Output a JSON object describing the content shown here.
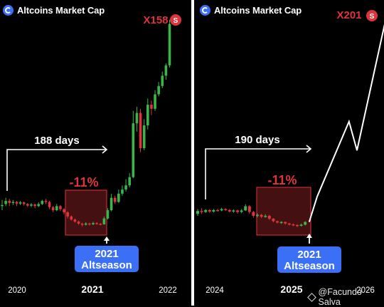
{
  "footer": {
    "credit": "@Facundo Salva",
    "icon": "binance-square-icon"
  },
  "chart_data": [
    {
      "type": "candlestick",
      "title": "Altcoins Market Cap",
      "x_ticks": [
        "2020",
        "2021",
        "2022"
      ],
      "multiplier_label": "X158",
      "duration_label": "188 days",
      "drawdown_label": "-11%",
      "annotation": [
        "2021",
        "Altseason"
      ],
      "colors": {
        "up": "#3bb54a",
        "down": "#e0343c",
        "accent": "#e0343c",
        "badge": "#3b6ff5"
      },
      "candles": [
        {
          "o": 1.6,
          "c": 1.65,
          "h": 1.9,
          "l": 1.4
        },
        {
          "o": 1.7,
          "c": 1.85,
          "h": 2.0,
          "l": 1.6
        },
        {
          "o": 1.85,
          "c": 1.75,
          "h": 1.95,
          "l": 1.6
        },
        {
          "o": 1.75,
          "c": 1.8,
          "h": 1.9,
          "l": 1.65
        },
        {
          "o": 1.8,
          "c": 1.72,
          "h": 1.85,
          "l": 1.6
        },
        {
          "o": 1.72,
          "c": 1.78,
          "h": 1.85,
          "l": 1.65
        },
        {
          "o": 1.78,
          "c": 1.7,
          "h": 1.82,
          "l": 1.62
        },
        {
          "o": 1.7,
          "c": 1.62,
          "h": 1.75,
          "l": 1.55
        },
        {
          "o": 1.62,
          "c": 1.68,
          "h": 1.75,
          "l": 1.55
        },
        {
          "o": 1.68,
          "c": 1.6,
          "h": 1.72,
          "l": 1.5
        },
        {
          "o": 1.6,
          "c": 1.7,
          "h": 1.78,
          "l": 1.55
        },
        {
          "o": 1.7,
          "c": 1.85,
          "h": 1.9,
          "l": 1.65
        },
        {
          "o": 1.85,
          "c": 1.8,
          "h": 1.95,
          "l": 1.7
        },
        {
          "o": 1.8,
          "c": 1.55,
          "h": 1.85,
          "l": 1.45
        },
        {
          "o": 1.55,
          "c": 1.4,
          "h": 1.6,
          "l": 1.3
        },
        {
          "o": 1.4,
          "c": 1.6,
          "h": 1.7,
          "l": 1.35
        },
        {
          "o": 1.6,
          "c": 1.45,
          "h": 1.65,
          "l": 1.35
        },
        {
          "o": 1.45,
          "c": 1.3,
          "h": 1.5,
          "l": 1.2
        },
        {
          "o": 1.3,
          "c": 1.1,
          "h": 1.35,
          "l": 1.0
        },
        {
          "o": 1.1,
          "c": 0.95,
          "h": 1.15,
          "l": 0.9
        },
        {
          "o": 0.95,
          "c": 0.85,
          "h": 1.0,
          "l": 0.8
        },
        {
          "o": 0.85,
          "c": 0.75,
          "h": 0.9,
          "l": 0.7
        },
        {
          "o": 0.75,
          "c": 0.7,
          "h": 0.8,
          "l": 0.62
        },
        {
          "o": 0.7,
          "c": 0.76,
          "h": 0.82,
          "l": 0.66
        },
        {
          "o": 0.76,
          "c": 0.72,
          "h": 0.8,
          "l": 0.66
        },
        {
          "o": 0.72,
          "c": 0.78,
          "h": 0.84,
          "l": 0.68
        },
        {
          "o": 0.78,
          "c": 0.74,
          "h": 0.82,
          "l": 0.7
        },
        {
          "o": 0.74,
          "c": 0.72,
          "h": 0.78,
          "l": 0.68
        },
        {
          "o": 0.72,
          "c": 1.0,
          "h": 1.1,
          "l": 0.7
        },
        {
          "o": 1.0,
          "c": 1.4,
          "h": 1.5,
          "l": 0.95
        },
        {
          "o": 1.4,
          "c": 2.0,
          "h": 2.2,
          "l": 1.35
        },
        {
          "o": 2.0,
          "c": 1.8,
          "h": 2.1,
          "l": 1.7
        },
        {
          "o": 1.8,
          "c": 2.2,
          "h": 2.4,
          "l": 1.75
        },
        {
          "o": 2.2,
          "c": 2.4,
          "h": 2.6,
          "l": 2.1
        },
        {
          "o": 2.4,
          "c": 2.6,
          "h": 2.9,
          "l": 2.3
        },
        {
          "o": 2.6,
          "c": 3.0,
          "h": 3.2,
          "l": 2.5
        },
        {
          "o": 3.0,
          "c": 5.6,
          "h": 6.2,
          "l": 2.95
        },
        {
          "o": 5.6,
          "c": 6.1,
          "h": 6.4,
          "l": 5.2
        },
        {
          "o": 6.1,
          "c": 4.4,
          "h": 6.3,
          "l": 4.2
        },
        {
          "o": 4.4,
          "c": 5.5,
          "h": 5.8,
          "l": 4.3
        },
        {
          "o": 5.5,
          "c": 6.5,
          "h": 6.8,
          "l": 5.3
        },
        {
          "o": 6.5,
          "c": 6.3,
          "h": 6.7,
          "l": 6.0
        },
        {
          "o": 6.3,
          "c": 7.0,
          "h": 7.2,
          "l": 6.2
        },
        {
          "o": 7.0,
          "c": 7.4,
          "h": 7.6,
          "l": 6.9
        },
        {
          "o": 7.4,
          "c": 7.9,
          "h": 8.1,
          "l": 7.3
        },
        {
          "o": 7.9,
          "c": 8.4,
          "h": 8.5,
          "l": 7.7
        },
        {
          "o": 8.4,
          "c": 10.4,
          "h": 10.6,
          "l": 8.3
        }
      ],
      "ylim": [
        0.2,
        10.8
      ]
    },
    {
      "type": "candlestick",
      "title": "Altcoins Market Cap",
      "x_ticks": [
        "2024",
        "2025",
        "2026"
      ],
      "multiplier_label": "X201",
      "duration_label": "190 days",
      "drawdown_label": "-11%",
      "annotation": [
        "2021",
        "Altseason"
      ],
      "colors": {
        "up": "#3bb54a",
        "down": "#e0343c",
        "accent": "#e0343c",
        "badge": "#3b6ff5"
      },
      "candles": [
        {
          "o": 1.3,
          "c": 1.45,
          "h": 1.55,
          "l": 1.2
        },
        {
          "o": 1.45,
          "c": 1.4,
          "h": 1.6,
          "l": 1.3
        },
        {
          "o": 1.4,
          "c": 1.5,
          "h": 1.55,
          "l": 1.35
        },
        {
          "o": 1.5,
          "c": 1.42,
          "h": 1.55,
          "l": 1.35
        },
        {
          "o": 1.42,
          "c": 1.5,
          "h": 1.55,
          "l": 1.38
        },
        {
          "o": 1.5,
          "c": 1.48,
          "h": 1.56,
          "l": 1.42
        },
        {
          "o": 1.48,
          "c": 1.55,
          "h": 1.62,
          "l": 1.44
        },
        {
          "o": 1.55,
          "c": 1.5,
          "h": 1.6,
          "l": 1.45
        },
        {
          "o": 1.5,
          "c": 1.42,
          "h": 1.55,
          "l": 1.38
        },
        {
          "o": 1.42,
          "c": 1.48,
          "h": 1.54,
          "l": 1.36
        },
        {
          "o": 1.48,
          "c": 1.4,
          "h": 1.52,
          "l": 1.32
        },
        {
          "o": 1.4,
          "c": 1.48,
          "h": 1.55,
          "l": 1.35
        },
        {
          "o": 1.48,
          "c": 1.7,
          "h": 1.8,
          "l": 1.45
        },
        {
          "o": 1.7,
          "c": 1.4,
          "h": 1.75,
          "l": 1.3
        },
        {
          "o": 1.4,
          "c": 1.2,
          "h": 1.45,
          "l": 1.1
        },
        {
          "o": 1.2,
          "c": 1.25,
          "h": 1.32,
          "l": 1.12
        },
        {
          "o": 1.25,
          "c": 1.15,
          "h": 1.3,
          "l": 1.08
        },
        {
          "o": 1.15,
          "c": 1.2,
          "h": 1.28,
          "l": 1.1
        },
        {
          "o": 1.2,
          "c": 1.05,
          "h": 1.25,
          "l": 0.98
        },
        {
          "o": 1.05,
          "c": 0.92,
          "h": 1.08,
          "l": 0.86
        },
        {
          "o": 0.92,
          "c": 0.85,
          "h": 0.96,
          "l": 0.8
        },
        {
          "o": 0.85,
          "c": 0.88,
          "h": 0.92,
          "l": 0.78
        },
        {
          "o": 0.88,
          "c": 0.8,
          "h": 0.9,
          "l": 0.74
        },
        {
          "o": 0.8,
          "c": 0.76,
          "h": 0.84,
          "l": 0.7
        },
        {
          "o": 0.76,
          "c": 0.72,
          "h": 0.8,
          "l": 0.66
        },
        {
          "o": 0.72,
          "c": 0.68,
          "h": 0.76,
          "l": 0.62
        },
        {
          "o": 0.68,
          "c": 0.74,
          "h": 0.8,
          "l": 0.64
        },
        {
          "o": 0.74,
          "c": 0.88,
          "h": 0.92,
          "l": 0.7
        }
      ],
      "projection": [
        [
          28,
          0.88
        ],
        [
          30,
          2.2
        ],
        [
          38,
          6.1
        ],
        [
          40,
          4.6
        ],
        [
          47,
          11.2
        ]
      ],
      "ylim": [
        0.2,
        11.6
      ]
    }
  ]
}
